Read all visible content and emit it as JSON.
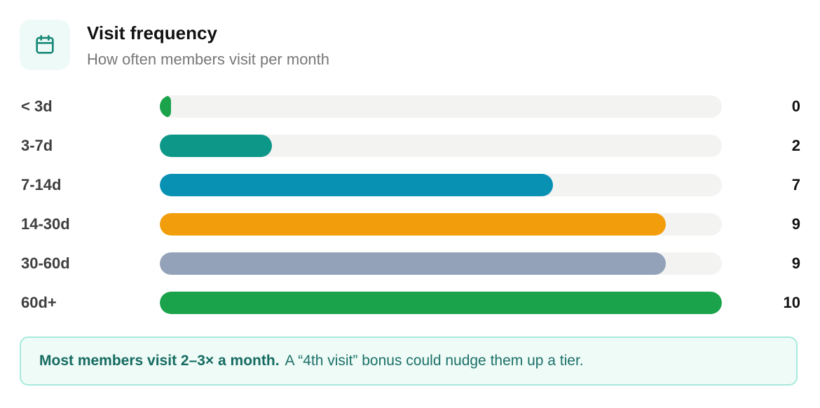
{
  "header": {
    "title": "Visit frequency",
    "subtitle": "How often members visit per month",
    "icon": "calendar-icon",
    "icon_color": "#1a8a78"
  },
  "chart_data": {
    "type": "bar",
    "orientation": "horizontal",
    "categories": [
      "< 3d",
      "3-7d",
      "7-14d",
      "14-30d",
      "30-60d",
      "60d+"
    ],
    "values": [
      0,
      2,
      7,
      9,
      9,
      10
    ],
    "value_labels": [
      "0",
      "2",
      "7",
      "9",
      "9",
      "10"
    ],
    "xlim": [
      0,
      10
    ],
    "colors": [
      "#1aa34a",
      "#0c9789",
      "#0991b4",
      "#f29e0c",
      "#93a2b8",
      "#1aa34a"
    ],
    "track_color": "#f3f3f2",
    "grid": false
  },
  "callout": {
    "strong": "Most members visit 2–3× a month.",
    "text": "A “4th visit” bonus could nudge them up a tier."
  }
}
